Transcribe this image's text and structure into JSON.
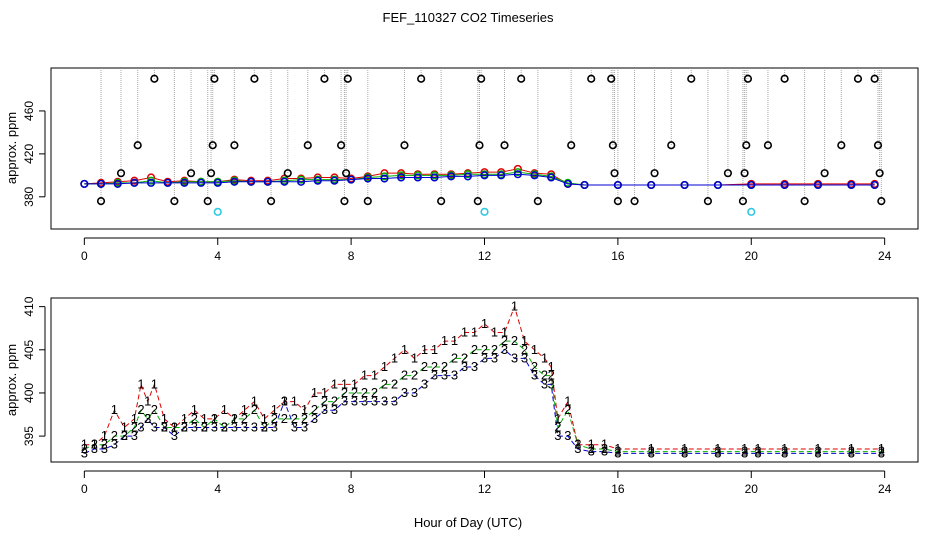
{
  "title": "FEF_110327  CO2 Timeseries",
  "xlabel": "Hour of Day (UTC)",
  "colors": {
    "black": "#000000",
    "red": "#e00000",
    "green": "#00b000",
    "blue": "#0000d0",
    "cyan": "#30c8e0",
    "gray": "#a8a8a8"
  },
  "chart_data": [
    {
      "type": "scatter",
      "ylabel": "approx. ppm",
      "xlim": [
        -1,
        25
      ],
      "ylim": [
        350,
        500
      ],
      "xticks": [
        0,
        4,
        8,
        12,
        16,
        20,
        24
      ],
      "xtick_labels": [
        "0",
        "4",
        "8",
        "12",
        "16",
        "20",
        "24"
      ],
      "yticks": [
        380,
        420,
        460
      ],
      "ytick_labels": [
        "380",
        "420",
        "460"
      ],
      "legend": "none",
      "markers": "open circles with dotted vertical lines from top",
      "series": [
        {
          "name": "red",
          "color": "#e00000",
          "x": [
            0,
            0.5,
            1,
            1.5,
            2,
            2.5,
            3,
            3.5,
            4,
            4.5,
            5,
            5.5,
            6,
            6.5,
            7,
            7.5,
            8,
            8.5,
            9,
            9.5,
            10,
            10.5,
            11,
            11.5,
            12,
            12.5,
            13,
            13.5,
            14,
            14.5,
            15,
            16,
            17,
            18,
            19,
            20,
            21,
            22,
            23,
            23.7
          ],
          "y": [
            392,
            393,
            394,
            395,
            398,
            394,
            395,
            394,
            394,
            396,
            395,
            395,
            397,
            397,
            398,
            398,
            397,
            399,
            402,
            402,
            401,
            401,
            401,
            402,
            403,
            403,
            406,
            402,
            401,
            392,
            391,
            391,
            391,
            391,
            391,
            392,
            392,
            392,
            392,
            392
          ]
        },
        {
          "name": "green",
          "color": "#00b000",
          "x": [
            0,
            0.5,
            1,
            1.5,
            2,
            2.5,
            3,
            3.5,
            4,
            4.5,
            5,
            5.5,
            6,
            6.5,
            7,
            7.5,
            8,
            8.5,
            9,
            9.5,
            10,
            10.5,
            11,
            11.5,
            12,
            12.5,
            13,
            13.5,
            14,
            14.5,
            15,
            16,
            17,
            18,
            19,
            20,
            21,
            22,
            23,
            23.7
          ],
          "y": [
            392,
            392,
            393,
            393,
            395,
            393,
            394,
            394,
            394,
            395,
            394,
            394,
            395,
            396,
            396,
            396,
            396,
            398,
            399,
            400,
            400,
            400,
            400,
            401,
            401,
            401,
            403,
            401,
            399,
            393,
            391,
            391,
            391,
            391,
            391,
            391,
            391,
            391,
            391,
            391
          ]
        },
        {
          "name": "blue",
          "color": "#0000d0",
          "x": [
            0,
            0.5,
            1,
            1.5,
            2,
            2.5,
            3,
            3.5,
            4,
            4.5,
            5,
            5.5,
            6,
            6.5,
            7,
            7.5,
            8,
            8.5,
            9,
            9.5,
            10,
            10.5,
            11,
            11.5,
            12,
            12.5,
            13,
            13.5,
            14,
            14.5,
            15,
            16,
            17,
            18,
            19,
            20,
            21,
            22,
            23,
            23.7
          ],
          "y": [
            392,
            392,
            392,
            393,
            393,
            393,
            393,
            393,
            393,
            394,
            394,
            394,
            394,
            394,
            395,
            395,
            396,
            397,
            397,
            398,
            398,
            398,
            399,
            399,
            400,
            400,
            401,
            400,
            398,
            392,
            391,
            391,
            391,
            391,
            391,
            391,
            391,
            391,
            391,
            391
          ]
        },
        {
          "name": "outliers",
          "color": "#000000",
          "x": [
            0.5,
            1.1,
            1.6,
            2.1,
            2.7,
            3.2,
            3.7,
            3.8,
            3.85,
            3.9,
            4.5,
            5.1,
            5.6,
            6.1,
            6.7,
            7.2,
            7.7,
            7.8,
            7.85,
            7.9,
            8.5,
            9.6,
            10.1,
            10.7,
            11.8,
            11.85,
            11.9,
            12.6,
            13.1,
            13.6,
            14.6,
            15.2,
            15.8,
            15.85,
            15.9,
            16.0,
            16.5,
            17.1,
            17.6,
            18.2,
            18.7,
            19.3,
            19.75,
            19.8,
            19.85,
            19.9,
            20.5,
            21.0,
            21.6,
            22.2,
            22.7,
            23.2,
            23.7,
            23.8,
            23.85,
            23.9
          ],
          "y": [
            376,
            402,
            428,
            490,
            376,
            402,
            376,
            402,
            428,
            490,
            428,
            490,
            376,
            402,
            428,
            490,
            428,
            376,
            402,
            490,
            376,
            428,
            490,
            376,
            376,
            428,
            490,
            428,
            490,
            376,
            428,
            490,
            490,
            428,
            402,
            376,
            376,
            402,
            428,
            490,
            376,
            402,
            376,
            402,
            428,
            490,
            428,
            490,
            376,
            402,
            428,
            490,
            490,
            428,
            402,
            376
          ]
        },
        {
          "name": "low",
          "color": "#30c8e0",
          "x": [
            4.0,
            12.0,
            20.0
          ],
          "y": [
            366,
            366,
            366
          ]
        }
      ]
    },
    {
      "type": "scatter",
      "ylabel": "approx. ppm",
      "xlim": [
        -1,
        25
      ],
      "ylim": [
        392,
        411
      ],
      "xticks": [
        0,
        4,
        8,
        12,
        16,
        20,
        24
      ],
      "xtick_labels": [
        "0",
        "4",
        "8",
        "12",
        "16",
        "20",
        "24"
      ],
      "yticks": [
        395,
        400,
        405,
        410
      ],
      "ytick_labels": [
        "395",
        "400",
        "405",
        "410"
      ],
      "legend": "none",
      "markers": "numbered characters joined by lines",
      "series": [
        {
          "name": "1",
          "color": "#e00000",
          "x": [
            0,
            0.3,
            0.6,
            0.9,
            1.2,
            1.5,
            1.7,
            1.9,
            2.1,
            2.4,
            2.7,
            3.0,
            3.3,
            3.6,
            3.9,
            4.2,
            4.5,
            4.8,
            5.1,
            5.4,
            5.7,
            6.0,
            6.3,
            6.6,
            6.9,
            7.2,
            7.5,
            7.8,
            8.1,
            8.4,
            8.7,
            9.0,
            9.3,
            9.6,
            9.9,
            10.2,
            10.5,
            10.8,
            11.1,
            11.4,
            11.7,
            12.0,
            12.3,
            12.6,
            12.9,
            13.2,
            13.5,
            13.8,
            14.0,
            14.2,
            14.5,
            14.8,
            15.2,
            15.6,
            16.0,
            17,
            18,
            19,
            19.8,
            20.2,
            21,
            22,
            23,
            23.9
          ],
          "y": [
            394,
            394,
            395,
            398,
            396,
            397,
            401,
            399,
            401,
            397,
            396,
            397,
            398,
            397,
            397,
            398,
            397,
            398,
            399,
            397,
            398,
            399,
            399,
            398,
            400,
            400,
            401,
            401,
            401,
            402,
            402,
            403,
            404,
            405,
            404,
            405,
            405,
            406,
            406,
            407,
            407,
            408,
            407,
            407,
            410,
            406,
            405,
            404,
            403,
            397,
            399,
            394,
            394,
            394,
            393.5,
            393.5,
            393.5,
            393.5,
            393.5,
            393.5,
            393.5,
            393.5,
            393.5,
            393.5
          ]
        },
        {
          "name": "2",
          "color": "#00b000",
          "x": [
            0,
            0.3,
            0.6,
            0.9,
            1.2,
            1.5,
            1.7,
            1.9,
            2.1,
            2.4,
            2.7,
            3.0,
            3.3,
            3.6,
            3.9,
            4.2,
            4.5,
            4.8,
            5.1,
            5.4,
            5.7,
            6.0,
            6.3,
            6.6,
            6.9,
            7.2,
            7.5,
            7.8,
            8.1,
            8.4,
            8.7,
            9.0,
            9.3,
            9.6,
            9.9,
            10.2,
            10.5,
            10.8,
            11.1,
            11.4,
            11.7,
            12.0,
            12.3,
            12.6,
            12.9,
            13.2,
            13.5,
            13.8,
            14.0,
            14.2,
            14.5,
            14.8,
            15.2,
            15.6,
            16.0,
            17,
            18,
            19,
            19.8,
            20.2,
            21,
            22,
            23,
            23.9
          ],
          "y": [
            393.5,
            394,
            394,
            395,
            395,
            396,
            398,
            397,
            398,
            396,
            396,
            396,
            397,
            396,
            397,
            396,
            397,
            397,
            398,
            396,
            397,
            397,
            397,
            397,
            398,
            399,
            399,
            400,
            400,
            400,
            400,
            401,
            401,
            402,
            402,
            403,
            403,
            403,
            404,
            404,
            405,
            405,
            405,
            406,
            406,
            405,
            403,
            402,
            402,
            396,
            398,
            394,
            393.5,
            393.5,
            393.2,
            393.2,
            393.2,
            393.2,
            393.2,
            393.2,
            393.2,
            393.2,
            393.2,
            393.2
          ]
        },
        {
          "name": "3",
          "color": "#0000d0",
          "x": [
            0,
            0.3,
            0.6,
            0.9,
            1.2,
            1.5,
            1.7,
            1.9,
            2.1,
            2.4,
            2.7,
            3.0,
            3.3,
            3.6,
            3.9,
            4.2,
            4.5,
            4.8,
            5.1,
            5.4,
            5.7,
            6.0,
            6.3,
            6.6,
            6.9,
            7.2,
            7.5,
            7.8,
            8.1,
            8.4,
            8.7,
            9.0,
            9.3,
            9.6,
            9.9,
            10.2,
            10.5,
            10.8,
            11.1,
            11.4,
            11.7,
            12.0,
            12.3,
            12.6,
            12.9,
            13.2,
            13.5,
            13.8,
            14.0,
            14.2,
            14.5,
            14.8,
            15.2,
            15.6,
            16.0,
            17,
            18,
            19,
            19.8,
            20.2,
            21,
            22,
            23,
            23.9
          ],
          "y": [
            393,
            393.5,
            393.5,
            394,
            395,
            395,
            396,
            397,
            396,
            396,
            395,
            396,
            396,
            396,
            396,
            396,
            396,
            396,
            396,
            396,
            396,
            399,
            396,
            396,
            397,
            398,
            398,
            399,
            399,
            399,
            399,
            399,
            399,
            400,
            400,
            401,
            402,
            402,
            402,
            403,
            403,
            404,
            404,
            405,
            404,
            404,
            402,
            401,
            401,
            395,
            395,
            393.5,
            393.2,
            393.2,
            393,
            393,
            393,
            393,
            393,
            393,
            393,
            393,
            393,
            393
          ]
        }
      ]
    }
  ]
}
